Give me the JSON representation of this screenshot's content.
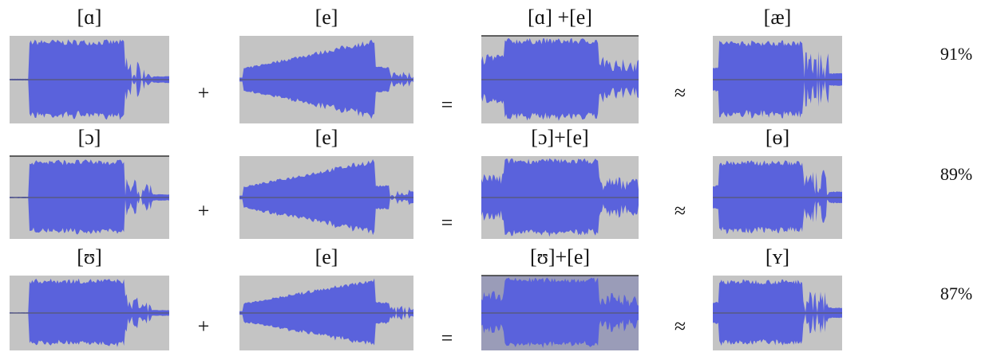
{
  "operators": {
    "plus": "+",
    "equals": "=",
    "approx": "≈"
  },
  "rows": [
    {
      "input_a": "[ɑ]",
      "input_b": "[e]",
      "sum": "[ɑ] +[e]",
      "result": "[æ]",
      "similarity": "91%"
    },
    {
      "input_a": "[ɔ]",
      "input_b": "[e]",
      "sum": "[ɔ]+[e]",
      "result": "[ɵ]",
      "similarity": "89%"
    },
    {
      "input_a": "[ʊ]",
      "input_b": "[e]",
      "sum": "[ʊ]+[e]",
      "result": "[ʏ]",
      "similarity": "87%"
    }
  ]
}
